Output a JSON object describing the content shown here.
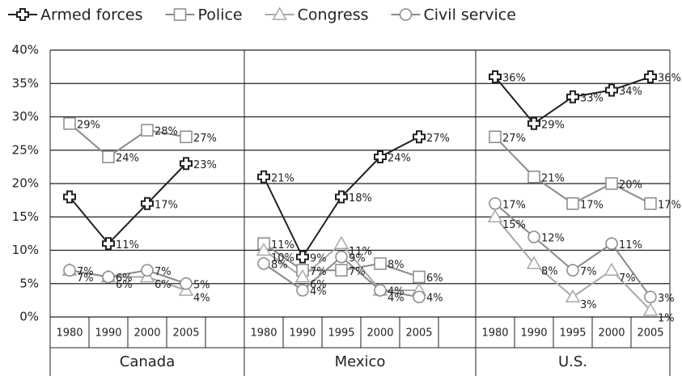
{
  "chart_data": {
    "type": "line",
    "groups": [
      "Canada",
      "Mexico",
      "U.S."
    ],
    "categories": [
      [
        "1980",
        "1990",
        "2000",
        "2005"
      ],
      [
        "1980",
        "1990",
        "1995",
        "2000",
        "2005"
      ],
      [
        "1980",
        "1990",
        "1995",
        "2000",
        "2005"
      ]
    ],
    "ylim": [
      0,
      40
    ],
    "yticks": [
      {
        "value": 0,
        "label": "0%"
      },
      {
        "value": 5,
        "label": "5%"
      },
      {
        "value": 10,
        "label": "10%"
      },
      {
        "value": 15,
        "label": "15%"
      },
      {
        "value": 20,
        "label": "20%"
      },
      {
        "value": 25,
        "label": "25%"
      },
      {
        "value": 30,
        "label": "30%"
      },
      {
        "value": 35,
        "label": "35%"
      },
      {
        "value": 40,
        "label": "40%"
      }
    ],
    "grid": true,
    "series": [
      {
        "name": "Armed forces",
        "color": "#222222",
        "marker": "cross",
        "values": [
          [
            18,
            11,
            17,
            23
          ],
          [
            21,
            9,
            18,
            24,
            27
          ],
          [
            36,
            29,
            33,
            34,
            36
          ]
        ],
        "value_labels": [
          [
            null,
            "11%",
            "17%",
            "23%"
          ],
          [
            "21%",
            "9%",
            "18%",
            "24%",
            "27%"
          ],
          [
            "36%",
            "29%",
            "33%",
            "34%",
            "36%"
          ]
        ]
      },
      {
        "name": "Police",
        "color": "#8a8a8a",
        "marker": "square",
        "values": [
          [
            29,
            24,
            28,
            27
          ],
          [
            11,
            7,
            7,
            8,
            6
          ],
          [
            27,
            21,
            17,
            20,
            17
          ]
        ],
        "value_labels": [
          [
            "29%",
            "24%",
            "28%",
            "27%"
          ],
          [
            "11%",
            "7%",
            "7%",
            "8%",
            "6%"
          ],
          [
            "27%",
            "21%",
            "17%",
            "20%",
            "17%"
          ]
        ]
      },
      {
        "name": "Congress",
        "color": "#a8a8a8",
        "marker": "triangle",
        "values": [
          [
            7,
            6,
            6,
            4
          ],
          [
            10,
            6,
            11,
            4,
            4
          ],
          [
            15,
            8,
            3,
            7,
            1
          ]
        ],
        "value_labels": [
          [
            "7%",
            "6%",
            "6%",
            "4%"
          ],
          [
            "10%",
            "6%",
            "11%",
            "4%",
            "4%"
          ],
          [
            "15%",
            "8%",
            "3%",
            "7%",
            "1%"
          ]
        ]
      },
      {
        "name": "Civil service",
        "color": "#8a8a8a",
        "marker": "circle",
        "values": [
          [
            7,
            6,
            7,
            5
          ],
          [
            8,
            4,
            9,
            4,
            3
          ],
          [
            17,
            12,
            7,
            11,
            3
          ]
        ],
        "value_labels": [
          [
            "7%",
            "6%",
            "7%",
            "5%"
          ],
          [
            "8%",
            "4%",
            "9%",
            "4%",
            null
          ],
          [
            "17%",
            "12%",
            "7%",
            "11%",
            "3%"
          ]
        ]
      }
    ]
  }
}
